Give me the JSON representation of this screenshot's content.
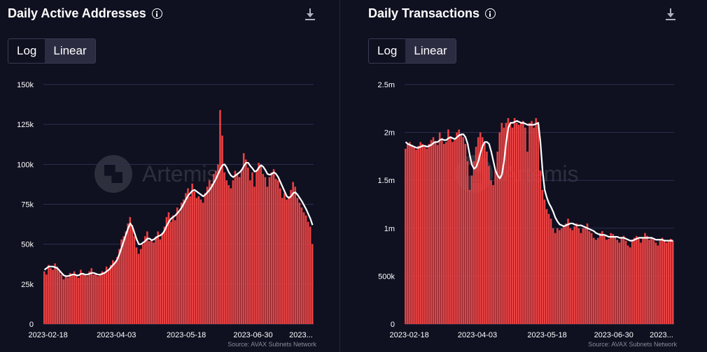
{
  "left": {
    "title": "Daily Active Addresses",
    "toggle": {
      "log_label": "Log",
      "linear_label": "Linear",
      "selected": "Linear"
    },
    "source": "Source: AVAX Subnets Network",
    "watermark": "Artemis"
  },
  "right": {
    "title": "Daily Transactions",
    "toggle": {
      "log_label": "Log",
      "linear_label": "Linear",
      "selected": "Linear"
    },
    "source": "Source: AVAX Subnets Network",
    "watermark": "Artemis"
  },
  "chart_data": [
    {
      "type": "bar",
      "title": "Daily Active Addresses",
      "bar_color": "#e84142",
      "line_color": "#ffffff",
      "grid": true,
      "x_start": "2023-02-15",
      "x_end": "2023-08-08",
      "x_ticks": [
        "2023-02-18",
        "2023-04-03",
        "2023-05-18",
        "2023-06-30",
        "2023..."
      ],
      "y_ticks": [
        "0",
        "25k",
        "50k",
        "75k",
        "100k",
        "125k",
        "150k"
      ],
      "ylim": [
        0,
        150000
      ],
      "series": [
        {
          "type": "bar",
          "values": [
            33000,
            31000,
            37000,
            35000,
            34000,
            38000,
            36000,
            33000,
            31000,
            28000,
            30000,
            29000,
            32000,
            31000,
            33000,
            30000,
            29000,
            34000,
            32000,
            31000,
            30000,
            33000,
            35000,
            31000,
            32000,
            30000,
            31000,
            33000,
            32000,
            36000,
            34000,
            37000,
            40000,
            39000,
            42000,
            47000,
            53000,
            55000,
            58000,
            63000,
            67000,
            62000,
            55000,
            48000,
            44000,
            47000,
            50000,
            55000,
            58000,
            52000,
            53000,
            51000,
            55000,
            58000,
            53000,
            57000,
            61000,
            67000,
            70000,
            64000,
            68000,
            65000,
            73000,
            70000,
            76000,
            78000,
            82000,
            85000,
            80000,
            88000,
            83000,
            79000,
            80000,
            78000,
            76000,
            82000,
            86000,
            90000,
            88000,
            94000,
            96000,
            100000,
            134000,
            118000,
            95000,
            90000,
            87000,
            85000,
            90000,
            96000,
            94000,
            92000,
            97000,
            107000,
            103000,
            98000,
            90000,
            95000,
            86000,
            96000,
            101000,
            99000,
            94000,
            92000,
            86000,
            92000,
            95000,
            97000,
            91000,
            90000,
            85000,
            79000,
            82000,
            78000,
            80000,
            84000,
            89000,
            86000,
            79000,
            76000,
            73000,
            70000,
            68000,
            64000,
            61000,
            50000
          ]
        },
        {
          "type": "line",
          "values": [
            34000,
            35000,
            36000,
            36000,
            36000,
            35500,
            35000,
            33500,
            32000,
            30500,
            30000,
            30000,
            30500,
            31000,
            31000,
            30500,
            30500,
            31500,
            31500,
            31000,
            31000,
            31500,
            32000,
            32000,
            31500,
            31000,
            31000,
            31500,
            32000,
            33000,
            34000,
            35500,
            37000,
            38500,
            40500,
            44000,
            48000,
            52000,
            56000,
            60000,
            63000,
            61000,
            57000,
            53000,
            50000,
            50000,
            51000,
            52000,
            53500,
            53500,
            52500,
            53000,
            54000,
            55000,
            55500,
            56500,
            58500,
            61500,
            64000,
            66000,
            67000,
            68000,
            69500,
            71000,
            73000,
            75500,
            78000,
            80500,
            82000,
            83500,
            84000,
            83000,
            82000,
            81000,
            80000,
            81000,
            82500,
            84000,
            86000,
            88500,
            91000,
            94000,
            97000,
            99500,
            100000,
            98000,
            95000,
            93000,
            92000,
            93000,
            94000,
            95000,
            96500,
            99000,
            101000,
            101000,
            99000,
            97500,
            95500,
            96000,
            98000,
            99500,
            98500,
            96500,
            94000,
            93500,
            94000,
            95000,
            94000,
            92000,
            89000,
            86000,
            83000,
            80000,
            79000,
            80000,
            82000,
            82500,
            81000,
            79000,
            77000,
            74500,
            72000,
            69000,
            66000,
            62000
          ]
        }
      ]
    },
    {
      "type": "bar",
      "title": "Daily Transactions",
      "bar_color": "#e84142",
      "line_color": "#ffffff",
      "grid": true,
      "x_start": "2023-02-15",
      "x_end": "2023-08-08",
      "x_ticks": [
        "2023-02-18",
        "2023-04-03",
        "2023-05-18",
        "2023-06-30",
        "2023..."
      ],
      "y_ticks": [
        "0",
        "500k",
        "1m",
        "1.5m",
        "2m",
        "2.5m"
      ],
      "ylim": [
        0,
        2500000
      ],
      "series": [
        {
          "type": "bar",
          "values": [
            1830000,
            1880000,
            1900000,
            1870000,
            1850000,
            1820000,
            1860000,
            1900000,
            1880000,
            1850000,
            1830000,
            1880000,
            1920000,
            1950000,
            1910000,
            1870000,
            2000000,
            1940000,
            1880000,
            1900000,
            2030000,
            1960000,
            1900000,
            1920000,
            2000000,
            2030000,
            1980000,
            1950000,
            1880000,
            1700000,
            1400000,
            1550000,
            1700000,
            1850000,
            1950000,
            2000000,
            1950000,
            1900000,
            1800000,
            1650000,
            1500000,
            1450000,
            1600000,
            1800000,
            2000000,
            2100000,
            2050000,
            2100000,
            2150000,
            2100000,
            2050000,
            2150000,
            2100000,
            2080000,
            2100000,
            2120000,
            2050000,
            1800000,
            2100000,
            2120000,
            2050000,
            2150000,
            2100000,
            1600000,
            1400000,
            1300000,
            1200000,
            1150000,
            1100000,
            1000000,
            950000,
            1000000,
            980000,
            1000000,
            1020000,
            1050000,
            1100000,
            1000000,
            980000,
            1020000,
            1050000,
            1000000,
            950000,
            1000000,
            1000000,
            1050000,
            970000,
            950000,
            900000,
            880000,
            900000,
            950000,
            970000,
            920000,
            880000,
            890000,
            950000,
            940000,
            920000,
            880000,
            850000,
            900000,
            920000,
            870000,
            820000,
            800000,
            880000,
            900000,
            920000,
            890000,
            850000,
            900000,
            950000,
            920000,
            880000,
            900000,
            880000,
            850000,
            820000,
            870000,
            900000,
            880000,
            850000,
            860000,
            890000,
            870000
          ]
        },
        {
          "type": "line",
          "values": [
            1900000,
            1880000,
            1870000,
            1860000,
            1850000,
            1840000,
            1840000,
            1850000,
            1860000,
            1860000,
            1850000,
            1860000,
            1870000,
            1890000,
            1900000,
            1900000,
            1920000,
            1930000,
            1920000,
            1920000,
            1940000,
            1950000,
            1940000,
            1930000,
            1950000,
            1970000,
            1980000,
            1980000,
            1950000,
            1880000,
            1760000,
            1660000,
            1620000,
            1640000,
            1700000,
            1790000,
            1860000,
            1900000,
            1900000,
            1880000,
            1800000,
            1700000,
            1600000,
            1550000,
            1520000,
            1560000,
            1700000,
            1900000,
            2050000,
            2100000,
            2100000,
            2110000,
            2120000,
            2110000,
            2100000,
            2100000,
            2090000,
            2080000,
            2080000,
            2080000,
            2080000,
            2090000,
            2100000,
            1900000,
            1600000,
            1400000,
            1320000,
            1260000,
            1220000,
            1170000,
            1110000,
            1070000,
            1040000,
            1030000,
            1020000,
            1030000,
            1040000,
            1050000,
            1050000,
            1040000,
            1030000,
            1030000,
            1030000,
            1020000,
            1010000,
            1000000,
            990000,
            980000,
            970000,
            950000,
            940000,
            930000,
            930000,
            930000,
            920000,
            910000,
            910000,
            910000,
            910000,
            910000,
            900000,
            900000,
            900000,
            890000,
            880000,
            870000,
            870000,
            880000,
            890000,
            900000,
            900000,
            900000,
            900000,
            900000,
            900000,
            900000,
            890000,
            880000,
            880000,
            880000,
            880000,
            870000,
            870000,
            870000,
            870000,
            870000
          ]
        }
      ]
    }
  ]
}
